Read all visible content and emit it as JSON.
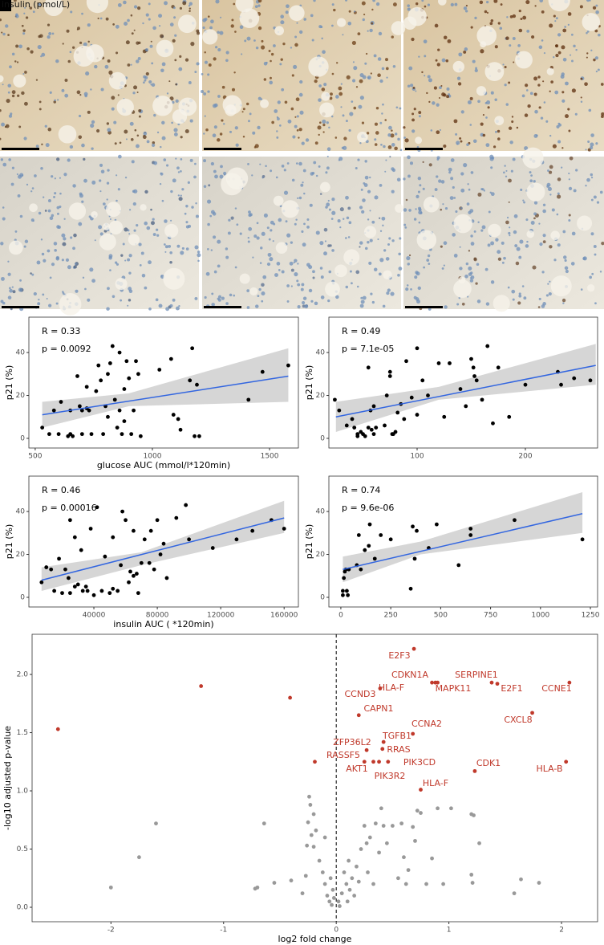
{
  "annotations": {
    "overlay": "insulin (pmol/L)"
  },
  "chart_data": [
    {
      "type": "scatter",
      "xlabel": "glucose AUC (mmol/l*120min)",
      "ylabel": "p21 (%)",
      "annotations": [
        "R = 0.33",
        "p = 0.0092"
      ],
      "color": "#000000",
      "x": [
        530,
        560,
        580,
        600,
        610,
        640,
        650,
        650,
        660,
        680,
        690,
        700,
        700,
        720,
        720,
        730,
        740,
        760,
        770,
        780,
        790,
        800,
        810,
        810,
        820,
        830,
        840,
        850,
        860,
        860,
        870,
        880,
        880,
        890,
        900,
        910,
        920,
        930,
        940,
        950,
        1030,
        1080,
        1090,
        1110,
        1120,
        1160,
        1170,
        1180,
        1190,
        1200,
        1410,
        1470,
        1580
      ],
      "values": [
        5,
        2,
        13,
        2,
        17,
        1,
        2,
        13,
        1,
        29,
        15,
        2,
        13,
        24,
        14,
        13,
        2,
        22,
        34,
        27,
        2,
        15,
        30,
        10,
        35,
        43,
        18,
        5,
        40,
        13,
        2,
        23,
        8,
        36,
        28,
        2,
        13,
        36,
        30,
        1,
        32,
        37,
        11,
        9,
        4,
        27,
        42,
        1,
        25,
        1,
        18,
        31,
        34
      ],
      "fit": {
        "color": "#3366e0",
        "x": [
          530,
          1580
        ],
        "values": [
          11,
          29
        ]
      },
      "ci": {
        "color": "#cccccc",
        "x": [
          530,
          900,
          1580
        ],
        "lower": [
          5,
          15,
          17
        ],
        "upper": [
          17,
          21,
          42
        ]
      },
      "xlim": [
        473,
        1623
      ],
      "ylim": [
        -4.5,
        56.5
      ],
      "xticks": [
        500,
        1000,
        1500
      ],
      "yticks": [
        0,
        20,
        40
      ]
    },
    {
      "type": "scatter",
      "ylabel": "p21 (%)",
      "annotations": [
        "R = 0.49",
        "p = 7.1e-05"
      ],
      "color": "#000000",
      "x": [
        24,
        28,
        35,
        40,
        42,
        45,
        45,
        48,
        50,
        52,
        55,
        55,
        57,
        58,
        60,
        60,
        62,
        70,
        72,
        75,
        75,
        77,
        78,
        80,
        82,
        85,
        88,
        90,
        95,
        100,
        100,
        105,
        110,
        120,
        125,
        130,
        140,
        145,
        150,
        152,
        153,
        155,
        160,
        165,
        170,
        175,
        185,
        200,
        230,
        233,
        245,
        260
      ],
      "values": [
        18,
        13,
        6,
        9,
        5,
        2,
        1,
        3,
        2,
        1,
        5,
        33,
        13,
        4,
        2,
        15,
        5,
        6,
        20,
        29,
        31,
        2,
        2,
        3,
        12,
        16,
        9,
        36,
        19,
        42,
        11,
        27,
        20,
        35,
        10,
        35,
        23,
        15,
        37,
        33,
        29,
        27,
        18,
        43,
        7,
        33,
        10,
        25,
        31,
        25,
        28,
        27
      ],
      "fit": {
        "color": "#3366e0",
        "x": [
          25,
          265
        ],
        "values": [
          10,
          34
        ]
      },
      "ci": {
        "color": "#cccccc",
        "x": [
          25,
          120,
          265
        ],
        "lower": [
          3,
          18,
          25
        ],
        "upper": [
          17,
          24,
          44
        ]
      },
      "xlim": [
        18.5,
        266.7
      ],
      "ylim": [
        -4.5,
        56.5
      ],
      "xticks": [
        100,
        200
      ],
      "yticks": [
        0,
        20,
        40
      ]
    },
    {
      "type": "scatter",
      "xlabel": "insulin AUC (          *120min)",
      "ylabel": "p21 (%)",
      "annotations": [
        "R = 0.46",
        "p = 0.00016"
      ],
      "color": "#000000",
      "x": [
        7000,
        10000,
        13000,
        15000,
        18000,
        20000,
        22000,
        24000,
        25000,
        25000,
        28000,
        28000,
        30000,
        32000,
        33000,
        35000,
        36000,
        38000,
        40000,
        42000,
        45000,
        47000,
        50000,
        52000,
        52000,
        55000,
        57000,
        58000,
        60000,
        62000,
        63000,
        65000,
        65000,
        67000,
        68000,
        70000,
        72000,
        75000,
        76000,
        78000,
        80000,
        82000,
        84000,
        86000,
        92000,
        98000,
        100000,
        115000,
        130000,
        140000,
        152000,
        160000
      ],
      "values": [
        7,
        14,
        13,
        3,
        18,
        2,
        13,
        9,
        36,
        2,
        5,
        28,
        6,
        22,
        3,
        5,
        3,
        32,
        1,
        42,
        3,
        19,
        2,
        4,
        28,
        3,
        15,
        40,
        36,
        7,
        12,
        10,
        31,
        11,
        2,
        16,
        27,
        16,
        31,
        13,
        36,
        20,
        25,
        9,
        37,
        43,
        27,
        23,
        27,
        31,
        36,
        32
      ],
      "fit": {
        "color": "#3366e0",
        "x": [
          7000,
          160000
        ],
        "values": [
          8,
          37
        ]
      },
      "ci": {
        "color": "#cccccc",
        "x": [
          7000,
          70000,
          160000
        ],
        "lower": [
          3,
          15,
          30
        ],
        "upper": [
          14,
          21,
          45
        ]
      },
      "xlim": [
        -1000,
        169000
      ],
      "ylim": [
        -4.5,
        56.5
      ],
      "xticks": [
        40000,
        80000,
        120000,
        160000
      ],
      "yticks": [
        0,
        20,
        40
      ]
    },
    {
      "type": "scatter",
      "ylabel": "p21 (%)",
      "annotations": [
        "R = 0.74",
        "p = 9.6e-06"
      ],
      "color": "#000000",
      "x": [
        10,
        10,
        15,
        20,
        25,
        30,
        35,
        40,
        80,
        90,
        100,
        120,
        140,
        145,
        170,
        200,
        250,
        350,
        360,
        370,
        380,
        440,
        480,
        590,
        650,
        650,
        870,
        1210
      ],
      "values": [
        3,
        1,
        9,
        12,
        13,
        3,
        1,
        13,
        15,
        29,
        13,
        22,
        24,
        34,
        18,
        29,
        27,
        4,
        33,
        18,
        31,
        23,
        34,
        15,
        29,
        32,
        36,
        27
      ],
      "fit": {
        "color": "#3366e0",
        "x": [
          10,
          1210
        ],
        "values": [
          13,
          39
        ]
      },
      "ci": {
        "color": "#cccccc",
        "x": [
          10,
          400,
          1210
        ],
        "lower": [
          7,
          20,
          30
        ],
        "upper": [
          19,
          26,
          49
        ]
      },
      "xlim": [
        -60,
        1286
      ],
      "ylim": [
        -4.5,
        56.5
      ],
      "xticks": [
        0,
        250,
        500,
        750,
        1000,
        1250
      ],
      "yticks": [
        0,
        20,
        40
      ]
    },
    {
      "type": "volcano",
      "xlabel": "log2 fold change",
      "ylabel": "-log10 adjusted p-value",
      "vline": 0,
      "xlim": [
        -2.7,
        2.32
      ],
      "ylim": [
        -0.124,
        2.345
      ],
      "xticks": [
        -2,
        -1,
        0,
        1,
        2
      ],
      "yticks": [
        {
          "value": 0,
          "label": "0.0"
        },
        0.5,
        {
          "value": 1,
          "label": "1.0"
        },
        1.5,
        {
          "value": 2,
          "label": "2.0"
        }
      ],
      "series": [
        {
          "color": "#999999",
          "x": [
            -2.0,
            -1.6,
            -1.75,
            -0.7,
            -0.72,
            -0.64,
            -0.55,
            -0.4,
            -0.3,
            -0.26,
            -0.27,
            -0.22,
            -0.25,
            -0.2,
            -0.18,
            -0.15,
            -0.12,
            -0.1,
            -0.08,
            -0.06,
            -0.04,
            -0.03,
            -0.02,
            -0.05,
            -0.1,
            -0.2,
            -0.23,
            -0.24,
            0.02,
            0.03,
            0.05,
            0.07,
            0.09,
            0.1,
            0.11,
            0.12,
            0.14,
            0.16,
            0.18,
            0.2,
            0.22,
            0.25,
            0.27,
            0.28,
            0.3,
            0.33,
            0.35,
            0.38,
            0.4,
            0.42,
            0.45,
            0.5,
            0.55,
            0.58,
            0.6,
            0.62,
            0.64,
            0.68,
            0.7,
            0.72,
            0.75,
            0.8,
            0.85,
            0.9,
            1.02,
            0.95,
            1.2,
            1.22,
            1.27,
            1.2,
            1.21,
            1.58,
            1.64,
            1.8
          ],
          "values": [
            0.17,
            0.72,
            0.43,
            0.17,
            0.16,
            0.72,
            0.21,
            0.23,
            0.12,
            0.53,
            0.27,
            0.62,
            0.73,
            0.8,
            0.66,
            0.4,
            0.3,
            0.2,
            0.1,
            0.05,
            0.02,
            0.15,
            0.08,
            0.25,
            0.6,
            0.52,
            0.88,
            0.95,
            0.05,
            0.01,
            0.12,
            0.3,
            0.2,
            0.05,
            0.4,
            0.15,
            0.25,
            0.1,
            0.35,
            0.22,
            0.5,
            0.7,
            0.55,
            0.3,
            0.6,
            0.2,
            0.72,
            0.47,
            0.85,
            0.7,
            0.55,
            0.7,
            0.25,
            0.72,
            0.43,
            0.2,
            0.32,
            0.69,
            0.57,
            0.83,
            0.81,
            0.2,
            0.42,
            0.85,
            0.85,
            0.2,
            0.8,
            0.79,
            0.55,
            0.28,
            0.21,
            0.12,
            0.24,
            0.21
          ]
        },
        {
          "color": "#c0392b",
          "x": [
            0.69,
            0.85,
            0.88,
            0.9,
            1.38,
            1.43,
            2.07,
            0.39,
            0.2,
            1.74,
            0.68,
            0.42,
            0.27,
            0.41,
            0.25,
            0.46,
            0.33,
            0.38,
            1.23,
            2.04,
            0.75,
            -2.47,
            -1.2,
            -0.41,
            -0.19
          ],
          "values": [
            2.22,
            1.93,
            1.93,
            1.93,
            1.93,
            1.92,
            1.93,
            1.88,
            1.65,
            1.67,
            1.49,
            1.42,
            1.35,
            1.36,
            1.25,
            1.25,
            1.25,
            1.25,
            1.17,
            1.25,
            1.01,
            1.53,
            1.9,
            1.8,
            1.25
          ],
          "labels": [
            "E2F3",
            "CDKN1A",
            "HLA-F",
            "MAPK11",
            "SERPINE1",
            "E2F1",
            "CCNE1",
            "CCND3",
            "CAPN1",
            "CXCL8",
            "CCNA2",
            "TGFB1",
            "ZFP36L2",
            "RRAS",
            "RASSF5",
            "PIK3CD",
            "AKT1",
            "PIK3R2",
            "CDK1",
            "HLA-B",
            "HLA-F",
            null,
            null,
            null,
            null
          ]
        }
      ]
    }
  ]
}
